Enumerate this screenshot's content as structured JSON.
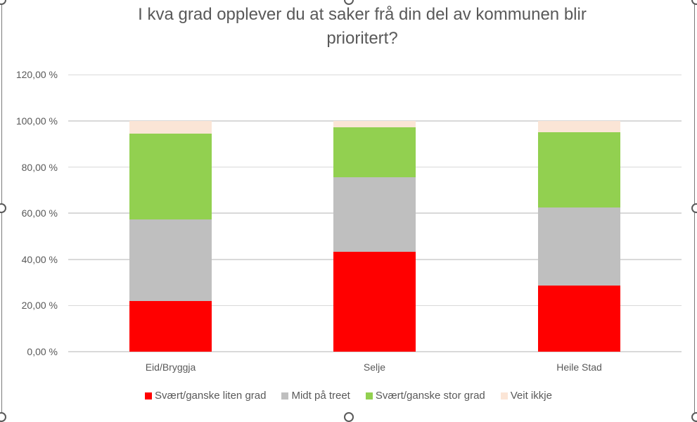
{
  "chart_data": {
    "type": "bar",
    "stacked": true,
    "title": "I kva grad opplever du at saker frå din del av kommunen blir prioritert?",
    "xlabel": "",
    "ylabel": "",
    "ylim": [
      0,
      120
    ],
    "yticks": [
      "0,00 %",
      "20,00 %",
      "40,00 %",
      "60,00 %",
      "80,00 %",
      "100,00 %",
      "120,00 %"
    ],
    "categories": [
      "Eid/Bryggja",
      "Selje",
      "Heile Stad"
    ],
    "series": [
      {
        "name": "Svært/ganske liten grad",
        "color": "#ff0000",
        "values": [
          22.0,
          43.3,
          28.7
        ]
      },
      {
        "name": "Midt på treet",
        "color": "#bfbfbf",
        "values": [
          35.3,
          32.3,
          33.8
        ]
      },
      {
        "name": "Svært/ganske stor grad",
        "color": "#92d050",
        "values": [
          37.2,
          21.7,
          32.6
        ]
      },
      {
        "name": "Veit ikkje",
        "color": "#fbe5d6",
        "values": [
          5.5,
          2.7,
          4.9
        ]
      }
    ],
    "grid": true,
    "legend_position": "bottom"
  },
  "title_line1": "I kva grad opplever du at saker frå din del av kommunen blir",
  "title_line2": "prioritert?"
}
